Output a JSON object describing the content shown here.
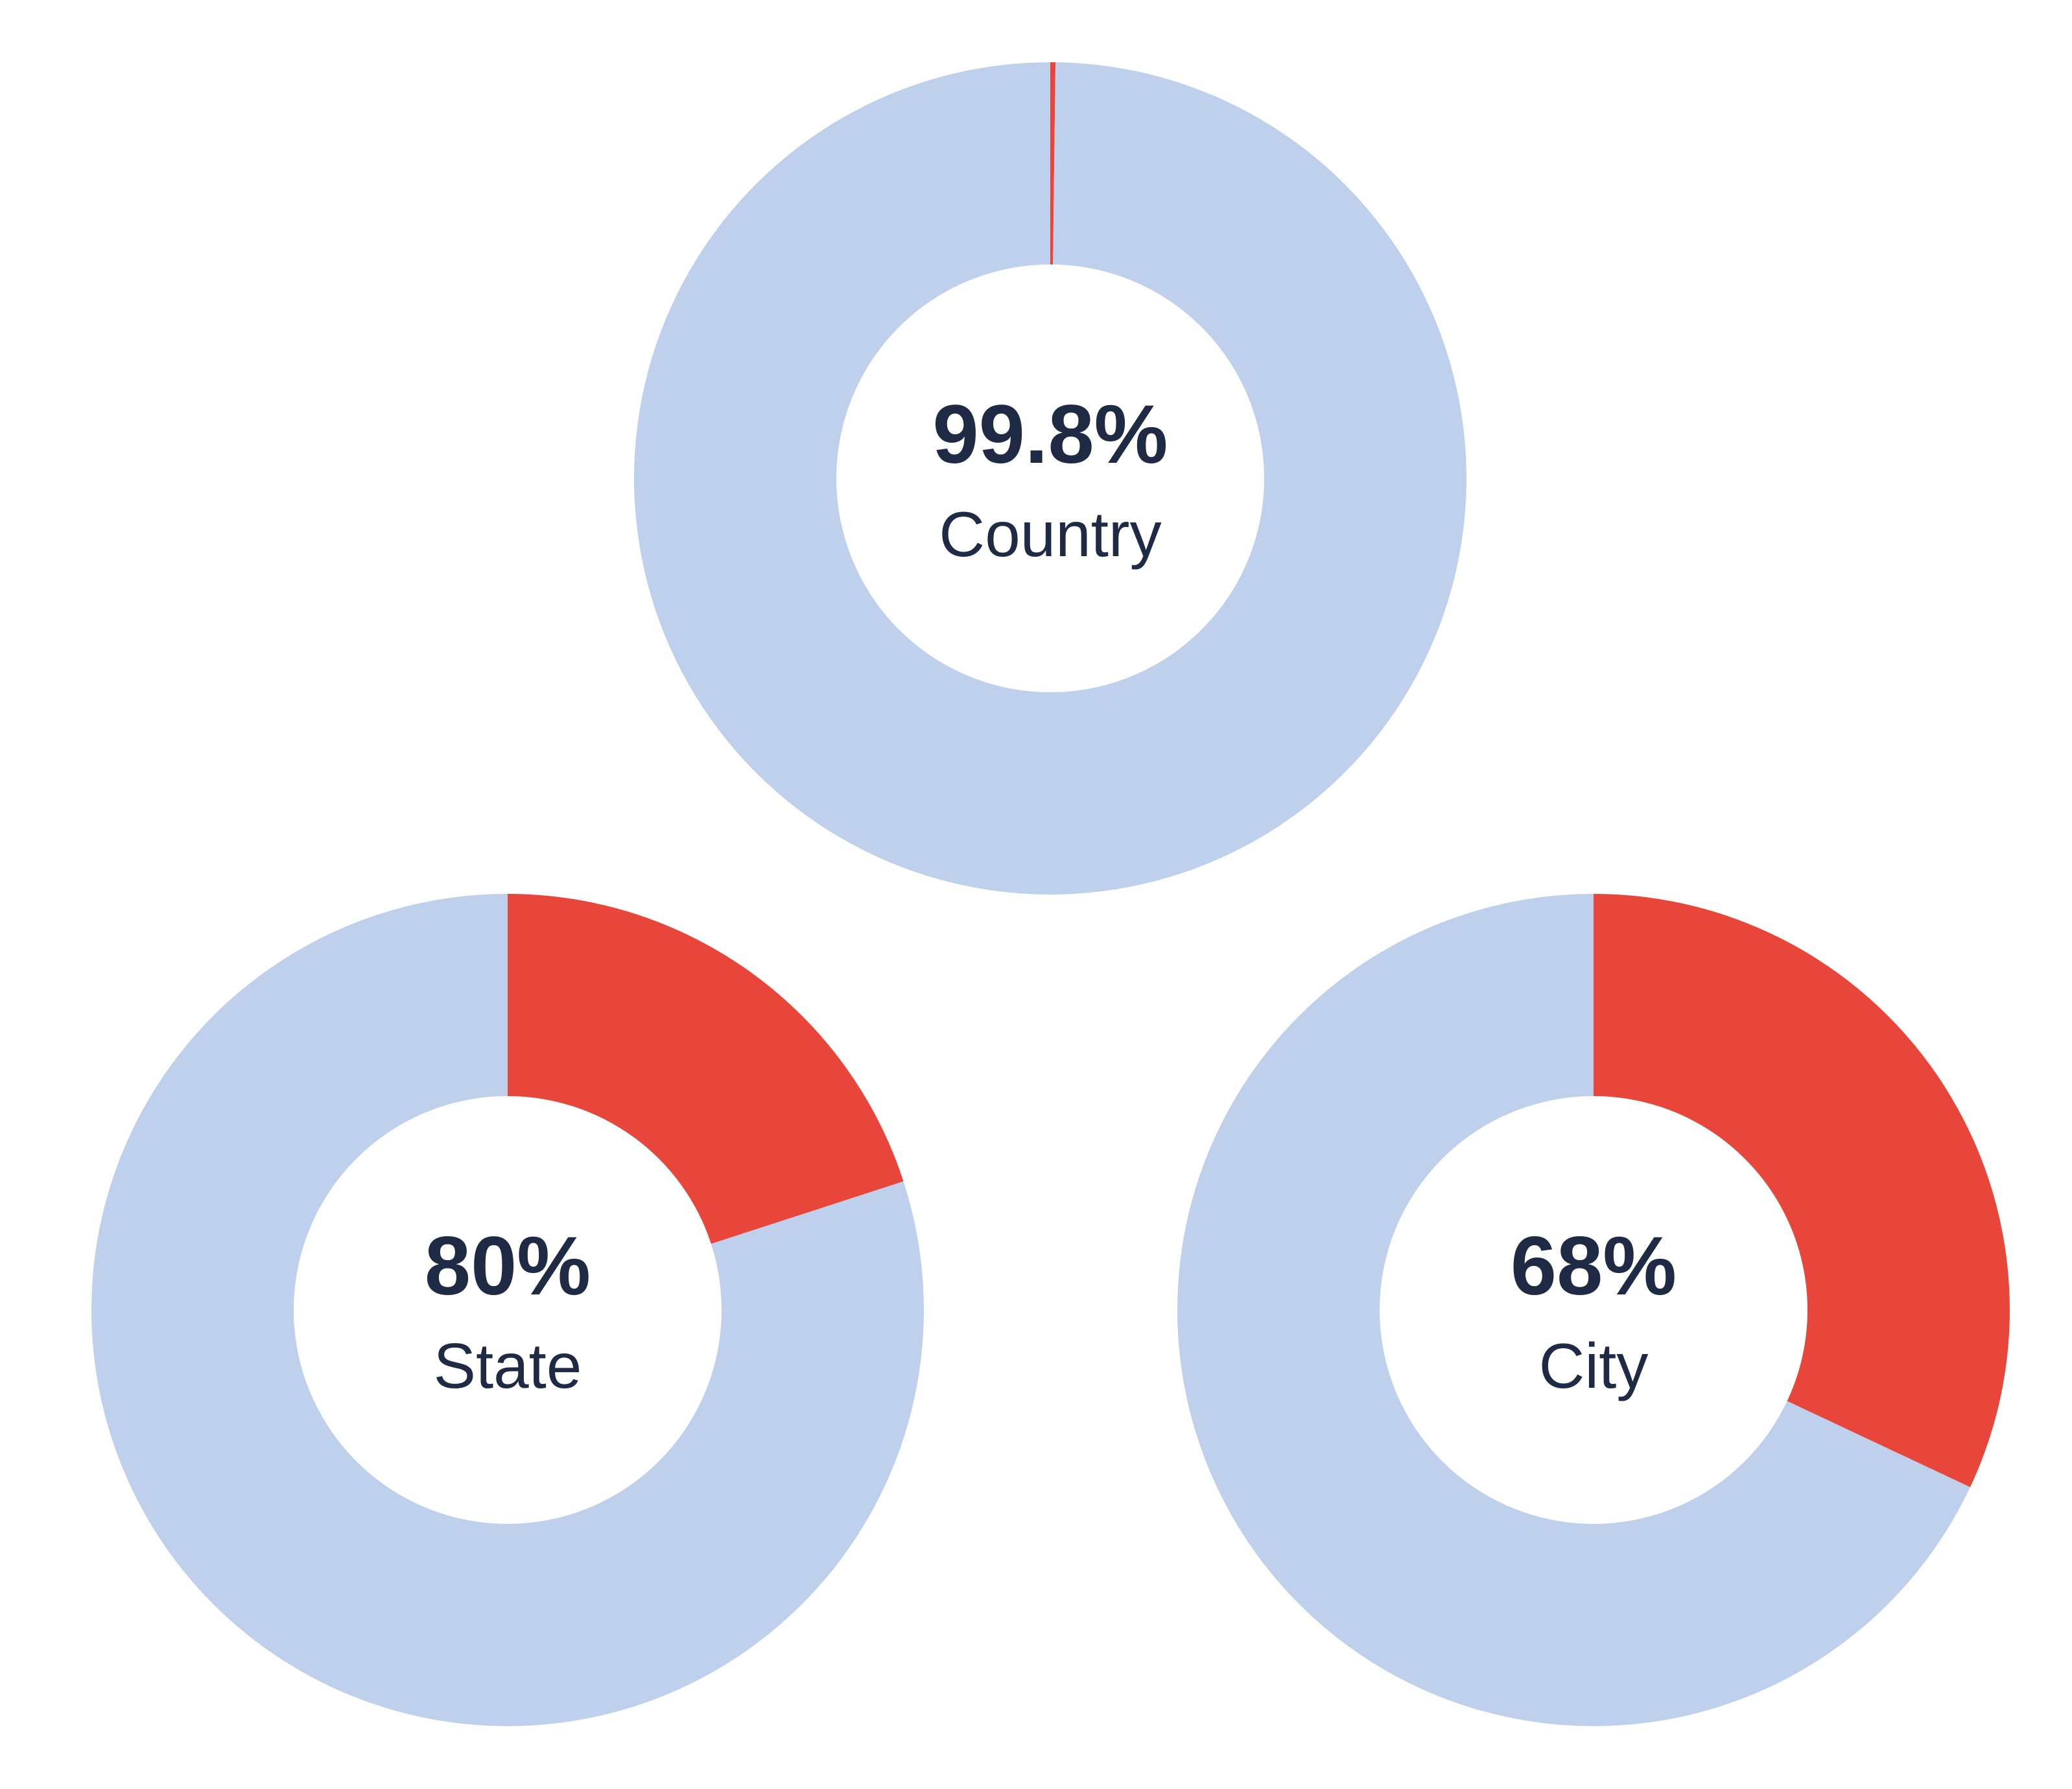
{
  "chart_data": [
    {
      "type": "pie",
      "label": "Country",
      "values": [
        0.2,
        99.8
      ],
      "value_labels": [
        null,
        "99.8%"
      ],
      "colors": [
        "#e8463a",
        "#bfd0ec"
      ]
    },
    {
      "type": "pie",
      "label": "State",
      "values": [
        20,
        80
      ],
      "value_labels": [
        null,
        "80%"
      ],
      "colors": [
        "#e8463a",
        "#bfd0ec"
      ]
    },
    {
      "type": "pie",
      "label": "City",
      "values": [
        32,
        68
      ],
      "value_labels": [
        null,
        "68%"
      ],
      "colors": [
        "#e8463a",
        "#bfd0ec"
      ]
    }
  ]
}
